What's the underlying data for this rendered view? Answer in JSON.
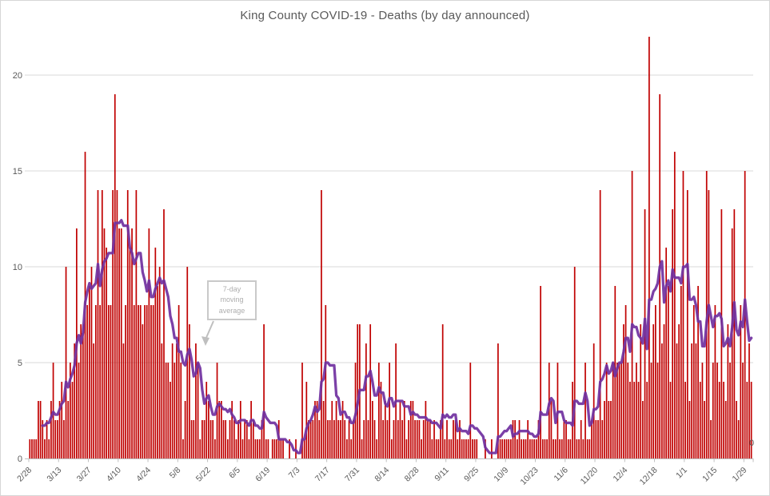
{
  "chart_data": {
    "type": "bar",
    "title": "King County COVID-19 - Deaths (by day announced)",
    "xlabel": "",
    "ylabel": "",
    "ylim": [
      0,
      22
    ],
    "y_ticks": [
      0,
      5,
      10,
      15,
      20
    ],
    "grid": true,
    "right_axis_zero_label": "0",
    "x_tick_interval": 14,
    "x_tick_labels": [
      "2/28",
      "3/13",
      "3/27",
      "4/10",
      "4/24",
      "5/8",
      "5/22",
      "6/5",
      "6/19",
      "7/3",
      "7/17",
      "7/31",
      "8/14",
      "8/28",
      "9/11",
      "9/25",
      "10/9",
      "10/23",
      "11/6",
      "11/20",
      "12/4",
      "12/18",
      "1/1",
      "1/15",
      "1/29"
    ],
    "series_name": "Deaths by day announced",
    "values": [
      1,
      1,
      1,
      1,
      3,
      3,
      2,
      1,
      2,
      1,
      3,
      5,
      2,
      2,
      3,
      4,
      2,
      10,
      3,
      5,
      4,
      6,
      12,
      5,
      7,
      7,
      16,
      8,
      9,
      10,
      6,
      8,
      14,
      8,
      14,
      12,
      11,
      8,
      8,
      14,
      19,
      14,
      12,
      12,
      6,
      8,
      14,
      11,
      12,
      8,
      14,
      8,
      8,
      7,
      8,
      8,
      12,
      8,
      8,
      11,
      9,
      10,
      6,
      13,
      5,
      5,
      4,
      6,
      5,
      6,
      8,
      5,
      1,
      3,
      10,
      7,
      2,
      2,
      6,
      5,
      1,
      2,
      2,
      4,
      3,
      2,
      2,
      1,
      5,
      3,
      3,
      2,
      2,
      1,
      2,
      3,
      2,
      1,
      2,
      3,
      1,
      2,
      2,
      1,
      3,
      2,
      1,
      1,
      1,
      2,
      7,
      1,
      1,
      0,
      1,
      1,
      1,
      2,
      1,
      1,
      0,
      0,
      1,
      0,
      0,
      1,
      0,
      0,
      5,
      1,
      4,
      2,
      2,
      2,
      3,
      3,
      2,
      14,
      3,
      8,
      2,
      2,
      3,
      2,
      3,
      2,
      2,
      3,
      2,
      1,
      2,
      1,
      2,
      5,
      7,
      7,
      1,
      2,
      6,
      2,
      7,
      3,
      2,
      1,
      5,
      4,
      2,
      3,
      2,
      5,
      1,
      2,
      6,
      2,
      3,
      2,
      3,
      1,
      2,
      3,
      3,
      2,
      2,
      2,
      1,
      2,
      3,
      2,
      2,
      1,
      2,
      1,
      1,
      2,
      7,
      1,
      2,
      1,
      1,
      2,
      2,
      1,
      2,
      1,
      1,
      1,
      1,
      5,
      1,
      1,
      1,
      0,
      0,
      0,
      1,
      0,
      0,
      1,
      0,
      0,
      6,
      1,
      1,
      1,
      1,
      1,
      1,
      2,
      2,
      1,
      2,
      1,
      1,
      1,
      2,
      1,
      1,
      1,
      1,
      2,
      9,
      1,
      1,
      1,
      5,
      3,
      1,
      1,
      5,
      1,
      1,
      2,
      2,
      1,
      1,
      4,
      10,
      1,
      1,
      2,
      1,
      5,
      1,
      1,
      2,
      6,
      2,
      2,
      14,
      2,
      3,
      5,
      3,
      3,
      5,
      9,
      5,
      5,
      5,
      7,
      8,
      5,
      4,
      15,
      4,
      5,
      4,
      7,
      3,
      13,
      4,
      22,
      5,
      7,
      8,
      5,
      19,
      6,
      7,
      11,
      9,
      4,
      13,
      16,
      6,
      7,
      9,
      15,
      4,
      14,
      3,
      6,
      8,
      6,
      9,
      4,
      5,
      3,
      15,
      14,
      2,
      5,
      8,
      5,
      4,
      13,
      4,
      3,
      7,
      5,
      12,
      13,
      3,
      2,
      8,
      5,
      15,
      4,
      6,
      4
    ],
    "moving_average": {
      "window": 7,
      "label": "7-day moving average",
      "color": "#7030A0"
    },
    "colors": {
      "bar": "#C00000",
      "line": "#7030A0",
      "grid": "#D9D9D9",
      "axis": "#BFBFBF",
      "text": "#595959",
      "annotation": "#BFBFBF"
    },
    "legend_position": "none"
  }
}
